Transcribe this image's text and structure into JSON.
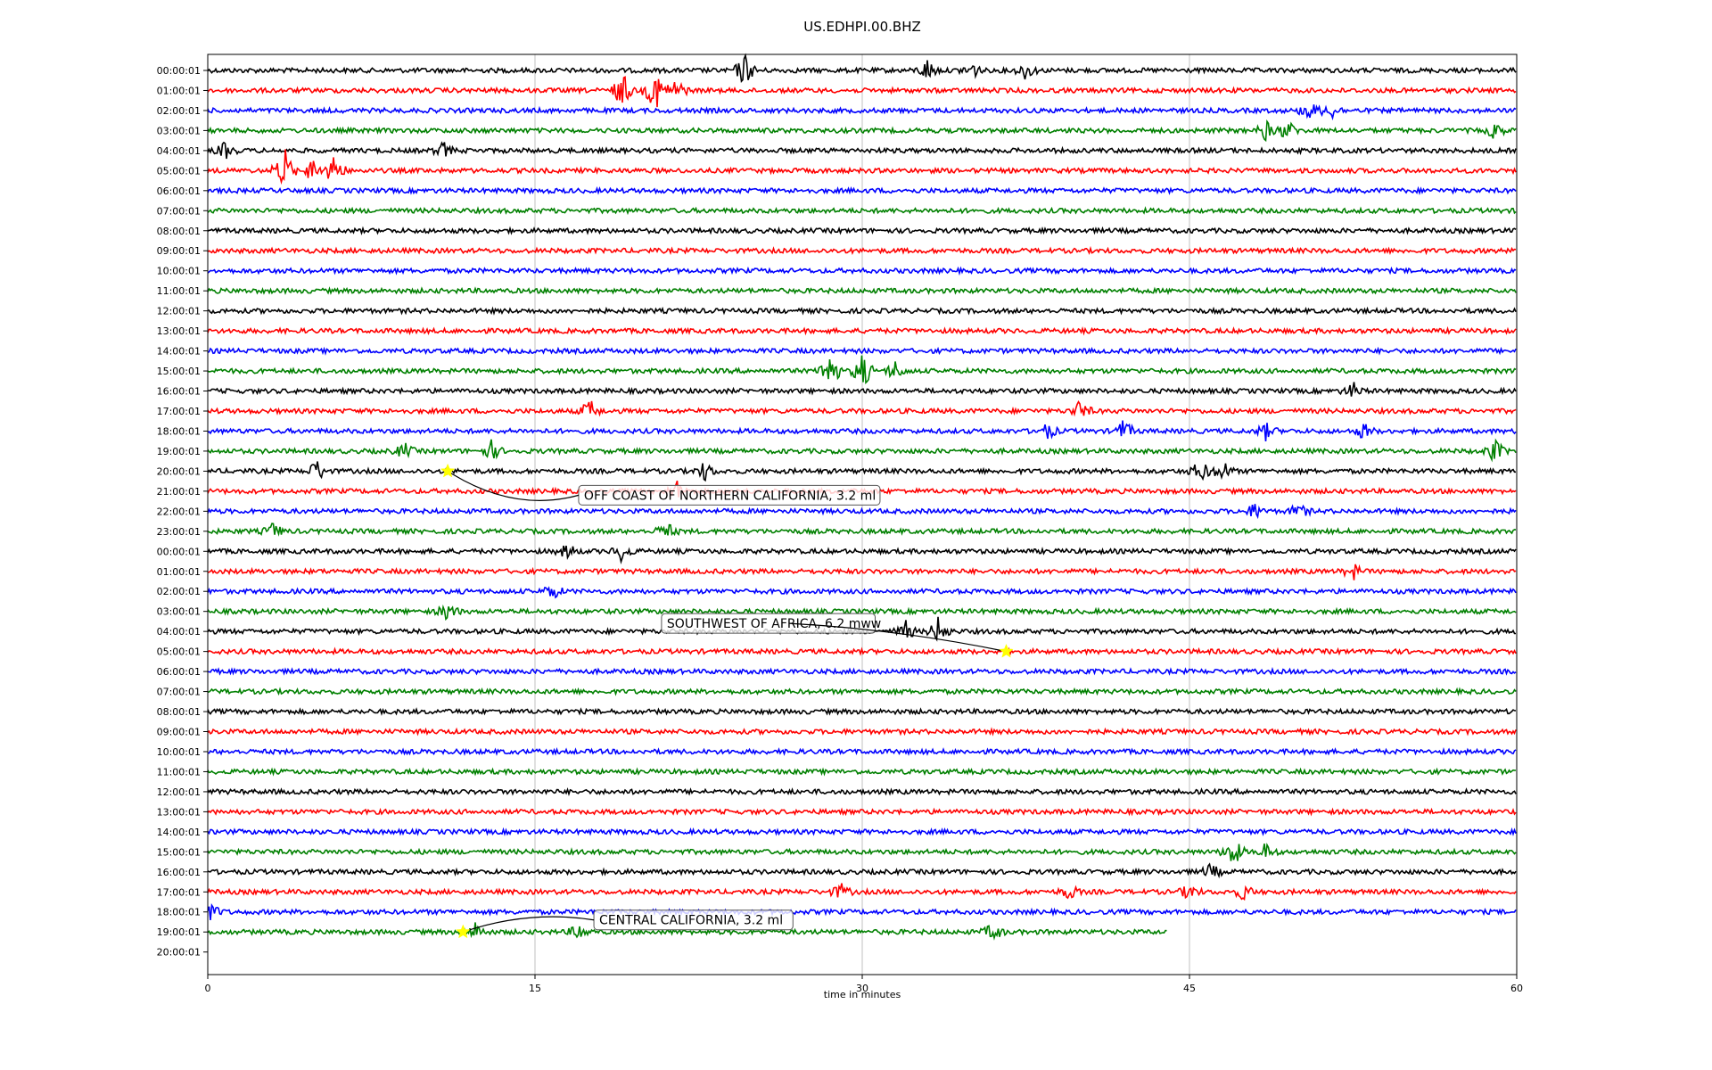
{
  "chart_data": {
    "type": "line",
    "title": "US.EDHPI.00.BHZ",
    "xlabel": "time in minutes",
    "ylabel": "",
    "xlim": [
      0,
      60
    ],
    "xticks": [
      0,
      15,
      30,
      45,
      60
    ],
    "grid": "vertical lines at x ticks",
    "row_colors": [
      "#000000",
      "#ff0000",
      "#0000ff",
      "#008000"
    ],
    "row_labels": [
      "00:00:01",
      "01:00:01",
      "02:00:01",
      "03:00:01",
      "04:00:01",
      "05:00:01",
      "06:00:01",
      "07:00:01",
      "08:00:01",
      "09:00:01",
      "10:00:01",
      "11:00:01",
      "12:00:01",
      "13:00:01",
      "14:00:01",
      "15:00:01",
      "16:00:01",
      "17:00:01",
      "18:00:01",
      "19:00:01",
      "20:00:01",
      "21:00:01",
      "22:00:01",
      "23:00:01",
      "00:00:01",
      "01:00:01",
      "02:00:01",
      "03:00:01",
      "04:00:01",
      "05:00:01",
      "06:00:01",
      "07:00:01",
      "08:00:01",
      "09:00:01",
      "10:00:01",
      "11:00:01",
      "12:00:01",
      "13:00:01",
      "14:00:01",
      "15:00:01",
      "16:00:01",
      "17:00:01",
      "18:00:01",
      "19:00:01",
      "20:00:01"
    ],
    "last_trace_end_minute": 44,
    "bursts": [
      {
        "row": 0,
        "minute": 24.6,
        "amp": 2.2
      },
      {
        "row": 0,
        "minute": 33.0,
        "amp": 1.4
      },
      {
        "row": 0,
        "minute": 35.0,
        "amp": 1.2
      },
      {
        "row": 0,
        "minute": 37.5,
        "amp": 1.1
      },
      {
        "row": 1,
        "minute": 19.0,
        "amp": 2.5
      },
      {
        "row": 1,
        "minute": 20.5,
        "amp": 3.0
      },
      {
        "row": 1,
        "minute": 21.5,
        "amp": 1.5
      },
      {
        "row": 2,
        "minute": 50.5,
        "amp": 1.2
      },
      {
        "row": 2,
        "minute": 51.5,
        "amp": 1.0
      },
      {
        "row": 3,
        "minute": 48.5,
        "amp": 1.2
      },
      {
        "row": 3,
        "minute": 49.5,
        "amp": 1.3
      },
      {
        "row": 3,
        "minute": 59.0,
        "amp": 1.0
      },
      {
        "row": 4,
        "minute": 0.8,
        "amp": 1.0
      },
      {
        "row": 4,
        "minute": 10.8,
        "amp": 1.0
      },
      {
        "row": 5,
        "minute": 3.5,
        "amp": 3.0
      },
      {
        "row": 5,
        "minute": 4.8,
        "amp": 1.5
      },
      {
        "row": 5,
        "minute": 5.8,
        "amp": 2.2
      },
      {
        "row": 15,
        "minute": 28.5,
        "amp": 3.0
      },
      {
        "row": 15,
        "minute": 30.0,
        "amp": 2.5
      },
      {
        "row": 15,
        "minute": 31.5,
        "amp": 1.2
      },
      {
        "row": 16,
        "minute": 52.5,
        "amp": 1.0
      },
      {
        "row": 17,
        "minute": 17.5,
        "amp": 1.5
      },
      {
        "row": 17,
        "minute": 40.0,
        "amp": 1.3
      },
      {
        "row": 18,
        "minute": 38.5,
        "amp": 1.0
      },
      {
        "row": 18,
        "minute": 42.0,
        "amp": 1.5
      },
      {
        "row": 18,
        "minute": 48.5,
        "amp": 1.0
      },
      {
        "row": 18,
        "minute": 53.0,
        "amp": 1.0
      },
      {
        "row": 19,
        "minute": 9.0,
        "amp": 1.0
      },
      {
        "row": 19,
        "minute": 13.0,
        "amp": 1.2
      },
      {
        "row": 19,
        "minute": 59.0,
        "amp": 1.5
      },
      {
        "row": 20,
        "minute": 5.0,
        "amp": 1.5
      },
      {
        "row": 20,
        "minute": 22.8,
        "amp": 1.2
      },
      {
        "row": 20,
        "minute": 45.5,
        "amp": 1.5
      },
      {
        "row": 20,
        "minute": 46.5,
        "amp": 1.4
      },
      {
        "row": 21,
        "minute": 21.5,
        "amp": 1.2
      },
      {
        "row": 22,
        "minute": 48.0,
        "amp": 1.0
      },
      {
        "row": 22,
        "minute": 50.0,
        "amp": 1.0
      },
      {
        "row": 23,
        "minute": 3.0,
        "amp": 1.0
      },
      {
        "row": 23,
        "minute": 21.0,
        "amp": 1.2
      },
      {
        "row": 24,
        "minute": 16.5,
        "amp": 1.0
      },
      {
        "row": 24,
        "minute": 19.0,
        "amp": 1.3
      },
      {
        "row": 25,
        "minute": 52.5,
        "amp": 1.0
      },
      {
        "row": 26,
        "minute": 15.8,
        "amp": 1.0
      },
      {
        "row": 27,
        "minute": 11.0,
        "amp": 1.2
      },
      {
        "row": 28,
        "minute": 32.0,
        "amp": 1.2
      },
      {
        "row": 28,
        "minute": 33.5,
        "amp": 1.8
      },
      {
        "row": 39,
        "minute": 47.0,
        "amp": 2.0
      },
      {
        "row": 39,
        "minute": 48.5,
        "amp": 1.0
      },
      {
        "row": 40,
        "minute": 46.0,
        "amp": 1.0
      },
      {
        "row": 41,
        "minute": 29.0,
        "amp": 1.0
      },
      {
        "row": 41,
        "minute": 39.5,
        "amp": 1.0
      },
      {
        "row": 41,
        "minute": 45.0,
        "amp": 1.0
      },
      {
        "row": 41,
        "minute": 47.5,
        "amp": 1.0
      },
      {
        "row": 42,
        "minute": 0.2,
        "amp": 1.0
      },
      {
        "row": 43,
        "minute": 12.3,
        "amp": 1.2
      },
      {
        "row": 43,
        "minute": 17.0,
        "amp": 1.0
      },
      {
        "row": 43,
        "minute": 36.0,
        "amp": 1.2
      }
    ],
    "annotations": [
      {
        "text": "OFF COAST OF NORTHERN CALIFORNIA, 3.2 ml",
        "event_row": 20,
        "event_minute": 11.0,
        "label_row": 21.2,
        "label_minute": 17.0,
        "marker_color": "#ffff00"
      },
      {
        "text": "SOUTHWEST OF AFRICA, 6.2 mww",
        "event_row": 29,
        "event_minute": 36.6,
        "label_row": 27.6,
        "label_minute": 20.8,
        "marker_color": "#ffff00"
      },
      {
        "text": "CENTRAL CALIFORNIA, 3.2 ml",
        "event_row": 43,
        "event_minute": 11.7,
        "label_row": 42.4,
        "label_minute": 17.7,
        "marker_color": "#ffff00"
      }
    ]
  }
}
